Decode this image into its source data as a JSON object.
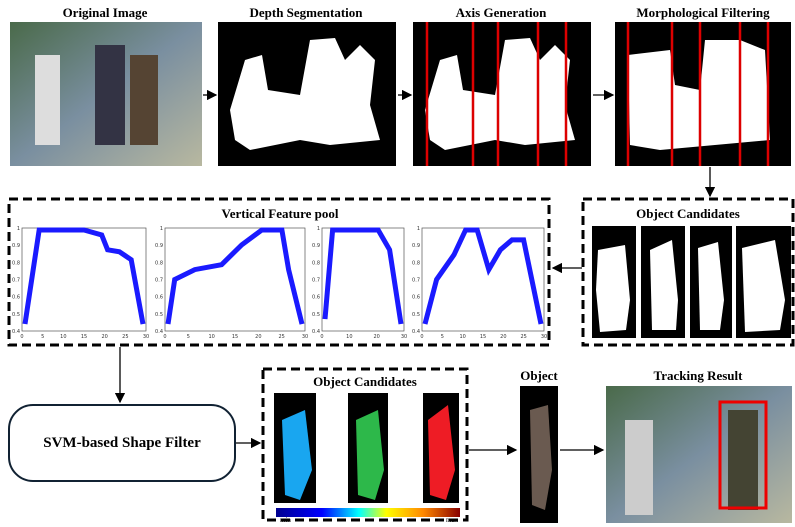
{
  "stages": {
    "original": "Original Image",
    "depth": "Depth Segmentation",
    "axis": "Axis Generation",
    "morph": "Morphological Filtering"
  },
  "feature_pool": {
    "title": "Vertical Feature pool",
    "plots": [
      {
        "yticks": [
          "0.4",
          "0.5",
          "0.6",
          "0.7",
          "0.8",
          "0.9",
          "1"
        ],
        "xticks": [
          "0",
          "5",
          "10",
          "15",
          "20",
          "25",
          "30"
        ]
      },
      {
        "yticks": [
          "0.4",
          "0.5",
          "0.6",
          "0.7",
          "0.8",
          "0.9",
          "1"
        ],
        "xticks": [
          "0",
          "5",
          "10",
          "15",
          "20",
          "25",
          "30"
        ]
      },
      {
        "yticks": [
          "0.4",
          "0.5",
          "0.6",
          "0.7",
          "0.8",
          "0.9",
          "1"
        ],
        "xticks": [
          "0",
          "10",
          "20",
          "30"
        ]
      },
      {
        "yticks": [
          "0.4",
          "0.5",
          "0.6",
          "0.7",
          "0.8",
          "0.9",
          "1"
        ],
        "xticks": [
          "0",
          "5",
          "10",
          "15",
          "20",
          "25",
          "30"
        ]
      }
    ]
  },
  "candidates_top": {
    "title": "Object Candidates"
  },
  "svm": {
    "label": "SVM-based Shape Filter"
  },
  "candidates_bottom": {
    "title": "Object Candidates",
    "scale_min": "min",
    "scale_max": "max"
  },
  "object": {
    "title": "Object"
  },
  "tracking": {
    "title": "Tracking Result"
  }
}
